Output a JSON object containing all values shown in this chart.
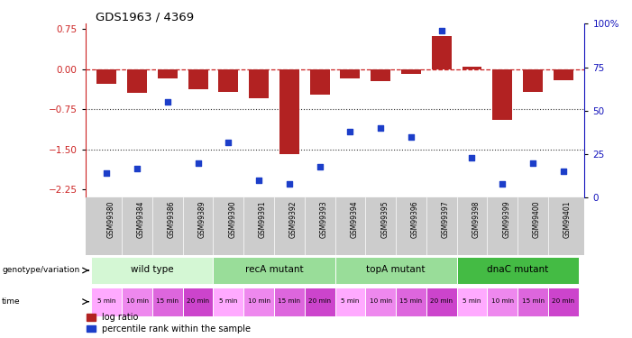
{
  "title": "GDS1963 / 4369",
  "samples": [
    "GSM99380",
    "GSM99384",
    "GSM99386",
    "GSM99389",
    "GSM99390",
    "GSM99391",
    "GSM99392",
    "GSM99393",
    "GSM99394",
    "GSM99395",
    "GSM99396",
    "GSM99397",
    "GSM99398",
    "GSM99399",
    "GSM99400",
    "GSM99401"
  ],
  "log_ratio": [
    -0.28,
    -0.45,
    -0.18,
    -0.38,
    -0.42,
    -0.55,
    -1.58,
    -0.48,
    -0.18,
    -0.22,
    -0.08,
    0.62,
    0.04,
    -0.95,
    -0.42,
    -0.2
  ],
  "percentile_rank": [
    14,
    17,
    55,
    20,
    32,
    10,
    8,
    18,
    38,
    40,
    35,
    96,
    23,
    8,
    20,
    15
  ],
  "bar_color": "#b22222",
  "dot_color": "#1c3ec9",
  "ref_line_color": "#cc2222",
  "grid_line_color": "#333333",
  "ylim_left": [
    -2.4,
    0.85
  ],
  "ylim_right": [
    0,
    100
  ],
  "yticks_left": [
    0.75,
    0.0,
    -0.75,
    -1.5,
    -2.25
  ],
  "yticks_right": [
    100,
    75,
    50,
    25,
    0
  ],
  "hline_values": [
    -0.75,
    -1.5
  ],
  "groups": [
    {
      "label": "wild type",
      "start": 0,
      "end": 3,
      "color": "#d4f7d4"
    },
    {
      "label": "recA mutant",
      "start": 4,
      "end": 7,
      "color": "#99dd99"
    },
    {
      "label": "topA mutant",
      "start": 8,
      "end": 11,
      "color": "#99dd99"
    },
    {
      "label": "dnaC mutant",
      "start": 12,
      "end": 15,
      "color": "#44bb44"
    }
  ],
  "time_labels": [
    "5 min",
    "10 min",
    "15 min",
    "20 min",
    "5 min",
    "10 min",
    "15 min",
    "20 min",
    "5 min",
    "10 min",
    "15 min",
    "20 min",
    "5 min",
    "10 min",
    "15 min",
    "20 min"
  ],
  "time_colors": [
    "#ffaaff",
    "#ee88ee",
    "#dd66dd",
    "#cc44cc",
    "#ffaaff",
    "#ee88ee",
    "#dd66dd",
    "#cc44cc",
    "#ffaaff",
    "#ee88ee",
    "#dd66dd",
    "#cc44cc",
    "#ffaaff",
    "#ee88ee",
    "#dd66dd",
    "#cc44cc"
  ],
  "legend_log_ratio_label": "log ratio",
  "legend_percentile_label": "percentile rank within the sample",
  "bg_color": "#ffffff"
}
